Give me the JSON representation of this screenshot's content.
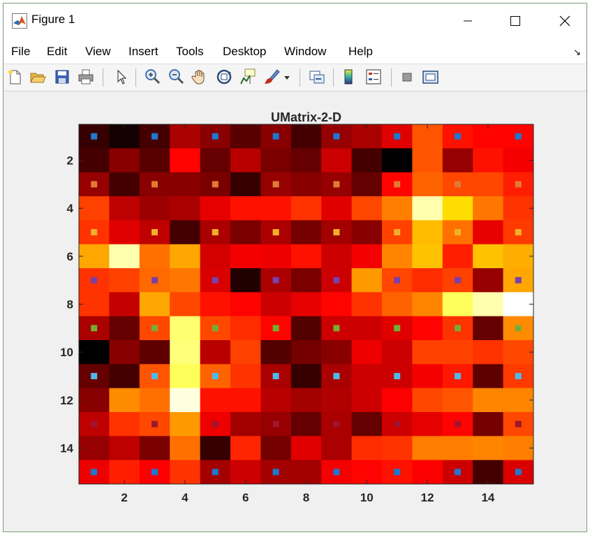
{
  "window": {
    "title": "Figure 1"
  },
  "menu": [
    "File",
    "Edit",
    "View",
    "Insert",
    "Tools",
    "Desktop",
    "Window",
    "Help"
  ],
  "toolbar_icons": [
    "new-figure-icon",
    "open-file-icon",
    "save-icon",
    "print-icon",
    "pointer-icon",
    "zoom-in-icon",
    "zoom-out-icon",
    "pan-hand-icon",
    "rotate-3d-icon",
    "data-cursor-icon",
    "brush-icon",
    "brush-dropdown-icon",
    "link-plot-icon",
    "colorbar-icon",
    "legend-icon",
    "hide-plot-tools-icon",
    "show-plot-tools-icon"
  ],
  "chart_data": {
    "type": "heatmap",
    "title": "UMatrix-2-D",
    "xlabel": "",
    "ylabel": "",
    "xlim": [
      0.5,
      15.5
    ],
    "ylim": [
      15.5,
      0.5
    ],
    "x_ticks": [
      2,
      4,
      6,
      8,
      10,
      12,
      14
    ],
    "y_ticks": [
      2,
      4,
      6,
      8,
      10,
      12,
      14
    ],
    "grid": false,
    "colormap": "hot",
    "color_range": [
      0,
      1
    ],
    "values": [
      [
        0.08,
        0.03,
        0.1,
        0.25,
        0.2,
        0.13,
        0.2,
        0.1,
        0.22,
        0.25,
        0.33,
        0.5,
        0.4,
        0.38,
        0.38
      ],
      [
        0.1,
        0.2,
        0.13,
        0.38,
        0.15,
        0.27,
        0.18,
        0.15,
        0.3,
        0.1,
        0.0,
        0.5,
        0.22,
        0.4,
        0.36
      ],
      [
        0.22,
        0.1,
        0.2,
        0.2,
        0.18,
        0.08,
        0.22,
        0.2,
        0.22,
        0.15,
        0.38,
        0.52,
        0.48,
        0.48,
        0.42
      ],
      [
        0.47,
        0.28,
        0.23,
        0.25,
        0.34,
        0.4,
        0.4,
        0.45,
        0.33,
        0.48,
        0.56,
        0.92,
        0.7,
        0.55,
        0.45
      ],
      [
        0.45,
        0.33,
        0.28,
        0.1,
        0.25,
        0.18,
        0.25,
        0.17,
        0.24,
        0.2,
        0.47,
        0.65,
        0.54,
        0.34,
        0.46
      ],
      [
        0.62,
        0.92,
        0.54,
        0.62,
        0.31,
        0.36,
        0.35,
        0.4,
        0.3,
        0.36,
        0.57,
        0.66,
        0.42,
        0.66,
        0.63
      ],
      [
        0.45,
        0.47,
        0.53,
        0.55,
        0.32,
        0.05,
        0.25,
        0.18,
        0.3,
        0.6,
        0.48,
        0.44,
        0.47,
        0.22,
        0.62
      ],
      [
        0.45,
        0.29,
        0.62,
        0.48,
        0.4,
        0.38,
        0.3,
        0.34,
        0.38,
        0.45,
        0.52,
        0.57,
        0.84,
        0.92,
        1.0
      ],
      [
        0.25,
        0.15,
        0.48,
        0.86,
        0.48,
        0.44,
        0.38,
        0.12,
        0.3,
        0.3,
        0.33,
        0.38,
        0.45,
        0.15,
        0.58
      ],
      [
        0.0,
        0.2,
        0.14,
        0.87,
        0.27,
        0.47,
        0.12,
        0.17,
        0.2,
        0.35,
        0.3,
        0.47,
        0.47,
        0.45,
        0.48
      ],
      [
        0.15,
        0.1,
        0.5,
        0.84,
        0.52,
        0.45,
        0.25,
        0.08,
        0.25,
        0.3,
        0.3,
        0.36,
        0.41,
        0.14,
        0.46
      ],
      [
        0.2,
        0.58,
        0.54,
        0.97,
        0.4,
        0.4,
        0.27,
        0.24,
        0.26,
        0.3,
        0.37,
        0.48,
        0.5,
        0.57,
        0.57
      ],
      [
        0.28,
        0.45,
        0.48,
        0.6,
        0.35,
        0.24,
        0.22,
        0.15,
        0.25,
        0.15,
        0.3,
        0.34,
        0.38,
        0.17,
        0.48
      ],
      [
        0.22,
        0.28,
        0.18,
        0.54,
        0.08,
        0.43,
        0.17,
        0.33,
        0.25,
        0.44,
        0.45,
        0.56,
        0.56,
        0.57,
        0.56
      ],
      [
        0.35,
        0.42,
        0.37,
        0.45,
        0.24,
        0.3,
        0.24,
        0.24,
        0.36,
        0.38,
        0.4,
        0.37,
        0.3,
        0.1,
        0.32
      ]
    ],
    "markers": [
      {
        "row": 1,
        "color": "#1f77d0"
      },
      {
        "row": 3,
        "color": "#e07a35"
      },
      {
        "row": 5,
        "color": "#f0b02a"
      },
      {
        "row": 7,
        "color": "#7b3fa8"
      },
      {
        "row": 9,
        "color": "#77ac34"
      },
      {
        "row": 11,
        "color": "#4fb8e8"
      },
      {
        "row": 13,
        "color": "#a2142f"
      },
      {
        "row": 15,
        "color": "#1f77d0"
      }
    ],
    "marker_columns": [
      1,
      3,
      5,
      7,
      9,
      11,
      13,
      15
    ]
  }
}
